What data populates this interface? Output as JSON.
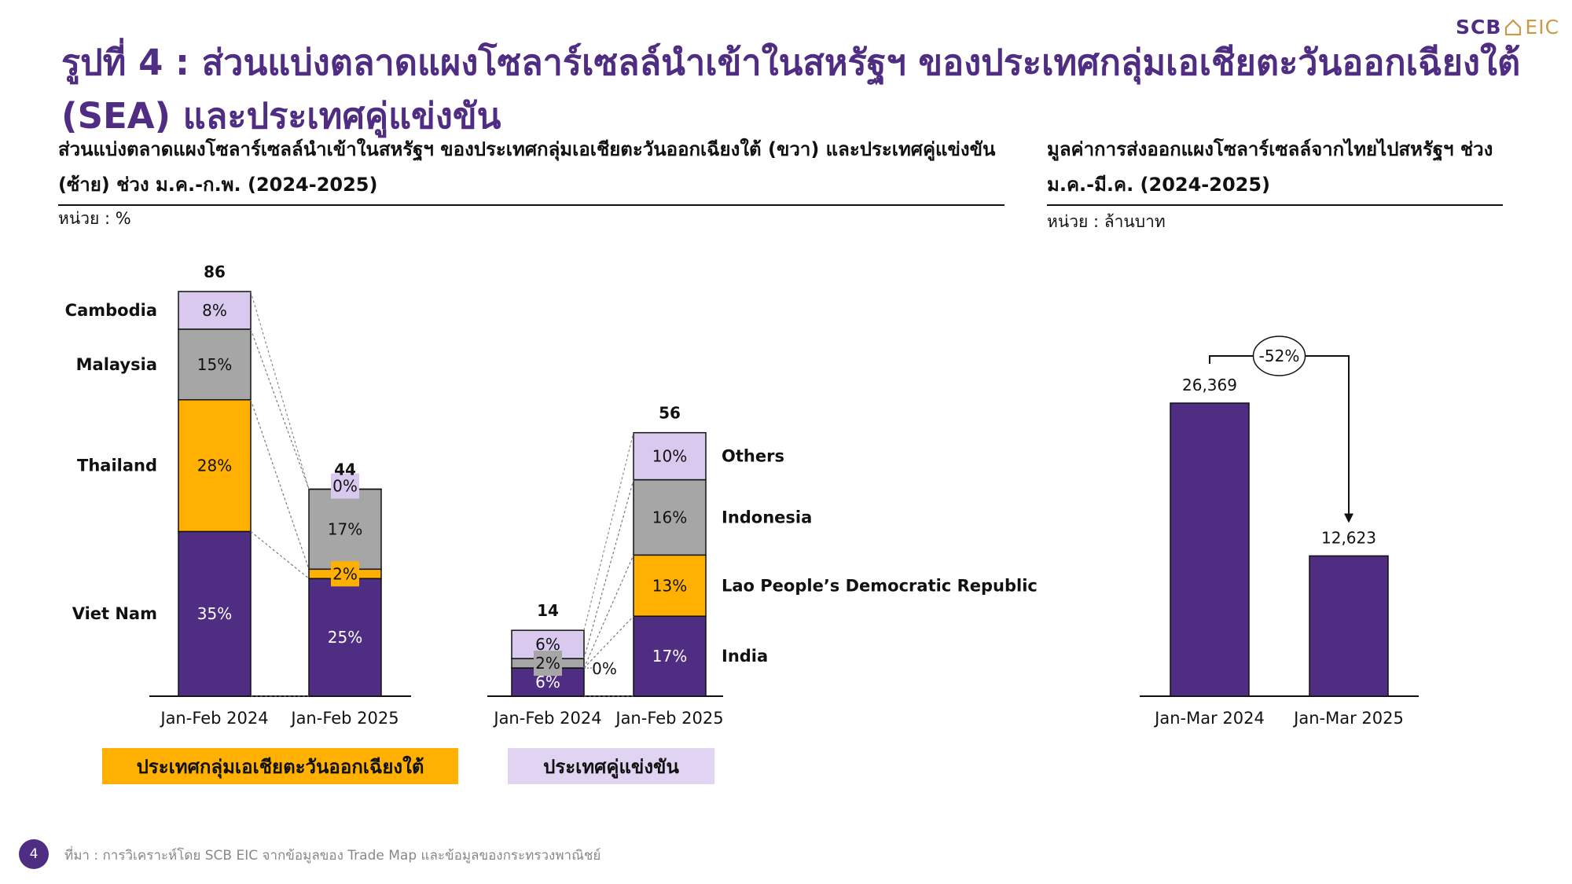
{
  "logo": {
    "brand": "SCB",
    "brand_suffix": "EIC"
  },
  "title": "รูปที่ 4 : ส่วนแบ่งตลาดแผงโซลาร์เซลล์นำเข้าในสหรัฐฯ ของประเทศกลุ่มเอเชียตะวันออกเฉียงใต้ (SEA) และประเทศคู่แข่งขัน",
  "left_panel": {
    "subtitle": "ส่วนแบ่งตลาดแผงโซลาร์เซลล์นำเข้าในสหรัฐฯ ของประเทศกลุ่มเอเชียตะวันออกเฉียงใต้ (ขวา) และประเทศคู่แข่งขัน (ซ้าย) ช่วง ม.ค.-ก.พ. (2024-2025)",
    "unit": "หน่วย : %",
    "group_sea": "ประเทศกลุ่มเอเชียตะวันออกเฉียงใต้",
    "group_competitors": "ประเทศคู่แข่งขัน"
  },
  "right_panel": {
    "subtitle": "มูลค่าการส่งออกแผงโซลาร์เซลล์จากไทยไปสหรัฐฯ ช่วง ม.ค.-มี.ค. (2024-2025)",
    "unit": "หน่วย : ล้านบาท"
  },
  "footer": {
    "page_number": "4",
    "source": "ที่มา : การวิเคราะห์โดย SCB EIC จากข้อมูลของ Trade Map และข้อมูลของกระทรวงพาณิชย์"
  },
  "colors": {
    "purple": "#4f2d82",
    "orange": "#ffb000",
    "gray": "#a6a6a6",
    "lavender": "#d9c9ee",
    "group_sea_bg": "#ffb000",
    "group_comp_bg": "#e0d4f2"
  },
  "chart_data": [
    {
      "type": "bar",
      "stacked": true,
      "categories": [
        "Jan-Feb 2024",
        "Jan-Feb 2025"
      ],
      "totals": [
        86,
        44
      ],
      "ylim": [
        0,
        86
      ],
      "series": [
        {
          "name": "Viet Nam",
          "values": [
            35,
            25
          ],
          "labels": [
            "35%",
            "25%"
          ],
          "color": "#4f2d82"
        },
        {
          "name": "Thailand",
          "values": [
            28,
            2
          ],
          "labels": [
            "28%",
            "2%"
          ],
          "color": "#ffb000"
        },
        {
          "name": "Malaysia",
          "values": [
            15,
            17
          ],
          "labels": [
            "15%",
            "17%"
          ],
          "color": "#a6a6a6"
        },
        {
          "name": "Cambodia",
          "values": [
            8,
            0
          ],
          "labels": [
            "8%",
            "0%"
          ],
          "color": "#d9c9ee"
        }
      ],
      "legend_position": "left"
    },
    {
      "type": "bar",
      "stacked": true,
      "categories": [
        "Jan-Feb 2024",
        "Jan-Feb 2025"
      ],
      "totals": [
        14,
        56
      ],
      "ylim": [
        0,
        86
      ],
      "series": [
        {
          "name": "India",
          "values": [
            6,
            17
          ],
          "labels": [
            "6%",
            "17%"
          ],
          "color": "#4f2d82"
        },
        {
          "name": "Lao People’s Democratic Republic",
          "values": [
            0,
            13
          ],
          "labels": [
            "0%",
            "13%"
          ],
          "color": "#ffb000"
        },
        {
          "name": "Indonesia",
          "values": [
            2,
            16
          ],
          "labels": [
            "2%",
            "16%"
          ],
          "color": "#a6a6a6"
        },
        {
          "name": "Others",
          "values": [
            6,
            10
          ],
          "labels": [
            "6%",
            "10%"
          ],
          "color": "#d9c9ee"
        }
      ],
      "legend_position": "right"
    },
    {
      "type": "bar",
      "categories": [
        "Jan-Mar 2024",
        "Jan-Mar 2025"
      ],
      "values": [
        26369,
        12623
      ],
      "value_labels": [
        "26,369",
        "12,623"
      ],
      "ylim": [
        0,
        34000
      ],
      "change_label": "-52%",
      "color": "#4f2d82"
    }
  ]
}
